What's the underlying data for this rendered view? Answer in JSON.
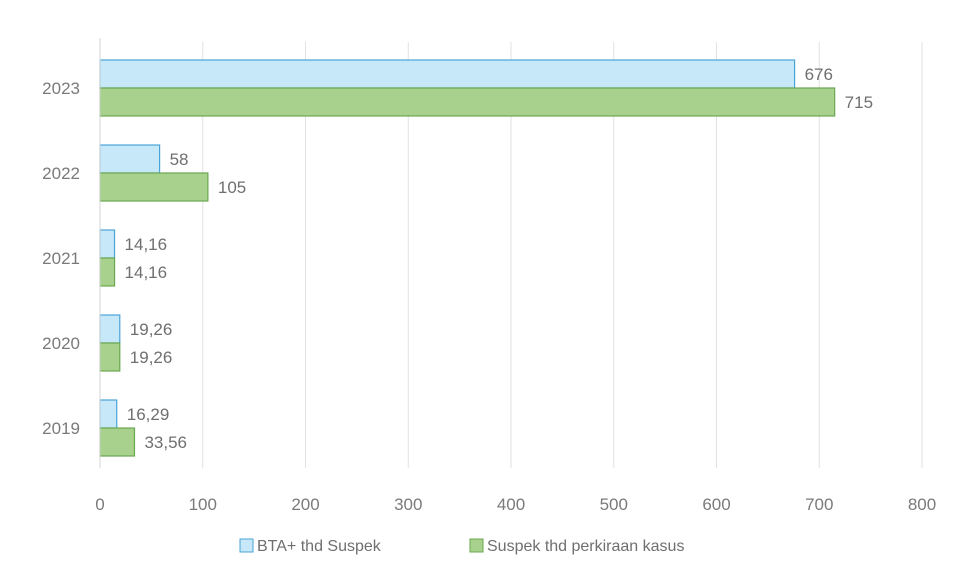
{
  "chart_data": {
    "type": "bar",
    "orientation": "horizontal",
    "title": "",
    "xlabel": "",
    "ylabel": "",
    "categories": [
      "2023",
      "2022",
      "2021",
      "2020",
      "2019"
    ],
    "series": [
      {
        "name": "BTA+ thd Suspek",
        "color": "#c6e8f8",
        "stroke": "#4aa3d8",
        "values": [
          676,
          58,
          14.16,
          19.26,
          16.29
        ],
        "labels": [
          "676",
          "58",
          "14,16",
          "19,26",
          "16,29"
        ]
      },
      {
        "name": "Suspek thd perkiraan kasus",
        "color": "#a9d18e",
        "stroke": "#6aa84f",
        "values": [
          715,
          105,
          14.16,
          19.26,
          33.56
        ],
        "labels": [
          "715",
          "105",
          "14,16",
          "19,26",
          "33,56"
        ]
      }
    ],
    "xlim": [
      0,
      800
    ],
    "xticks": [
      "0",
      "100",
      "200",
      "300",
      "400",
      "500",
      "600",
      "700",
      "800"
    ],
    "grid": "vertical",
    "legend_position": "bottom"
  }
}
